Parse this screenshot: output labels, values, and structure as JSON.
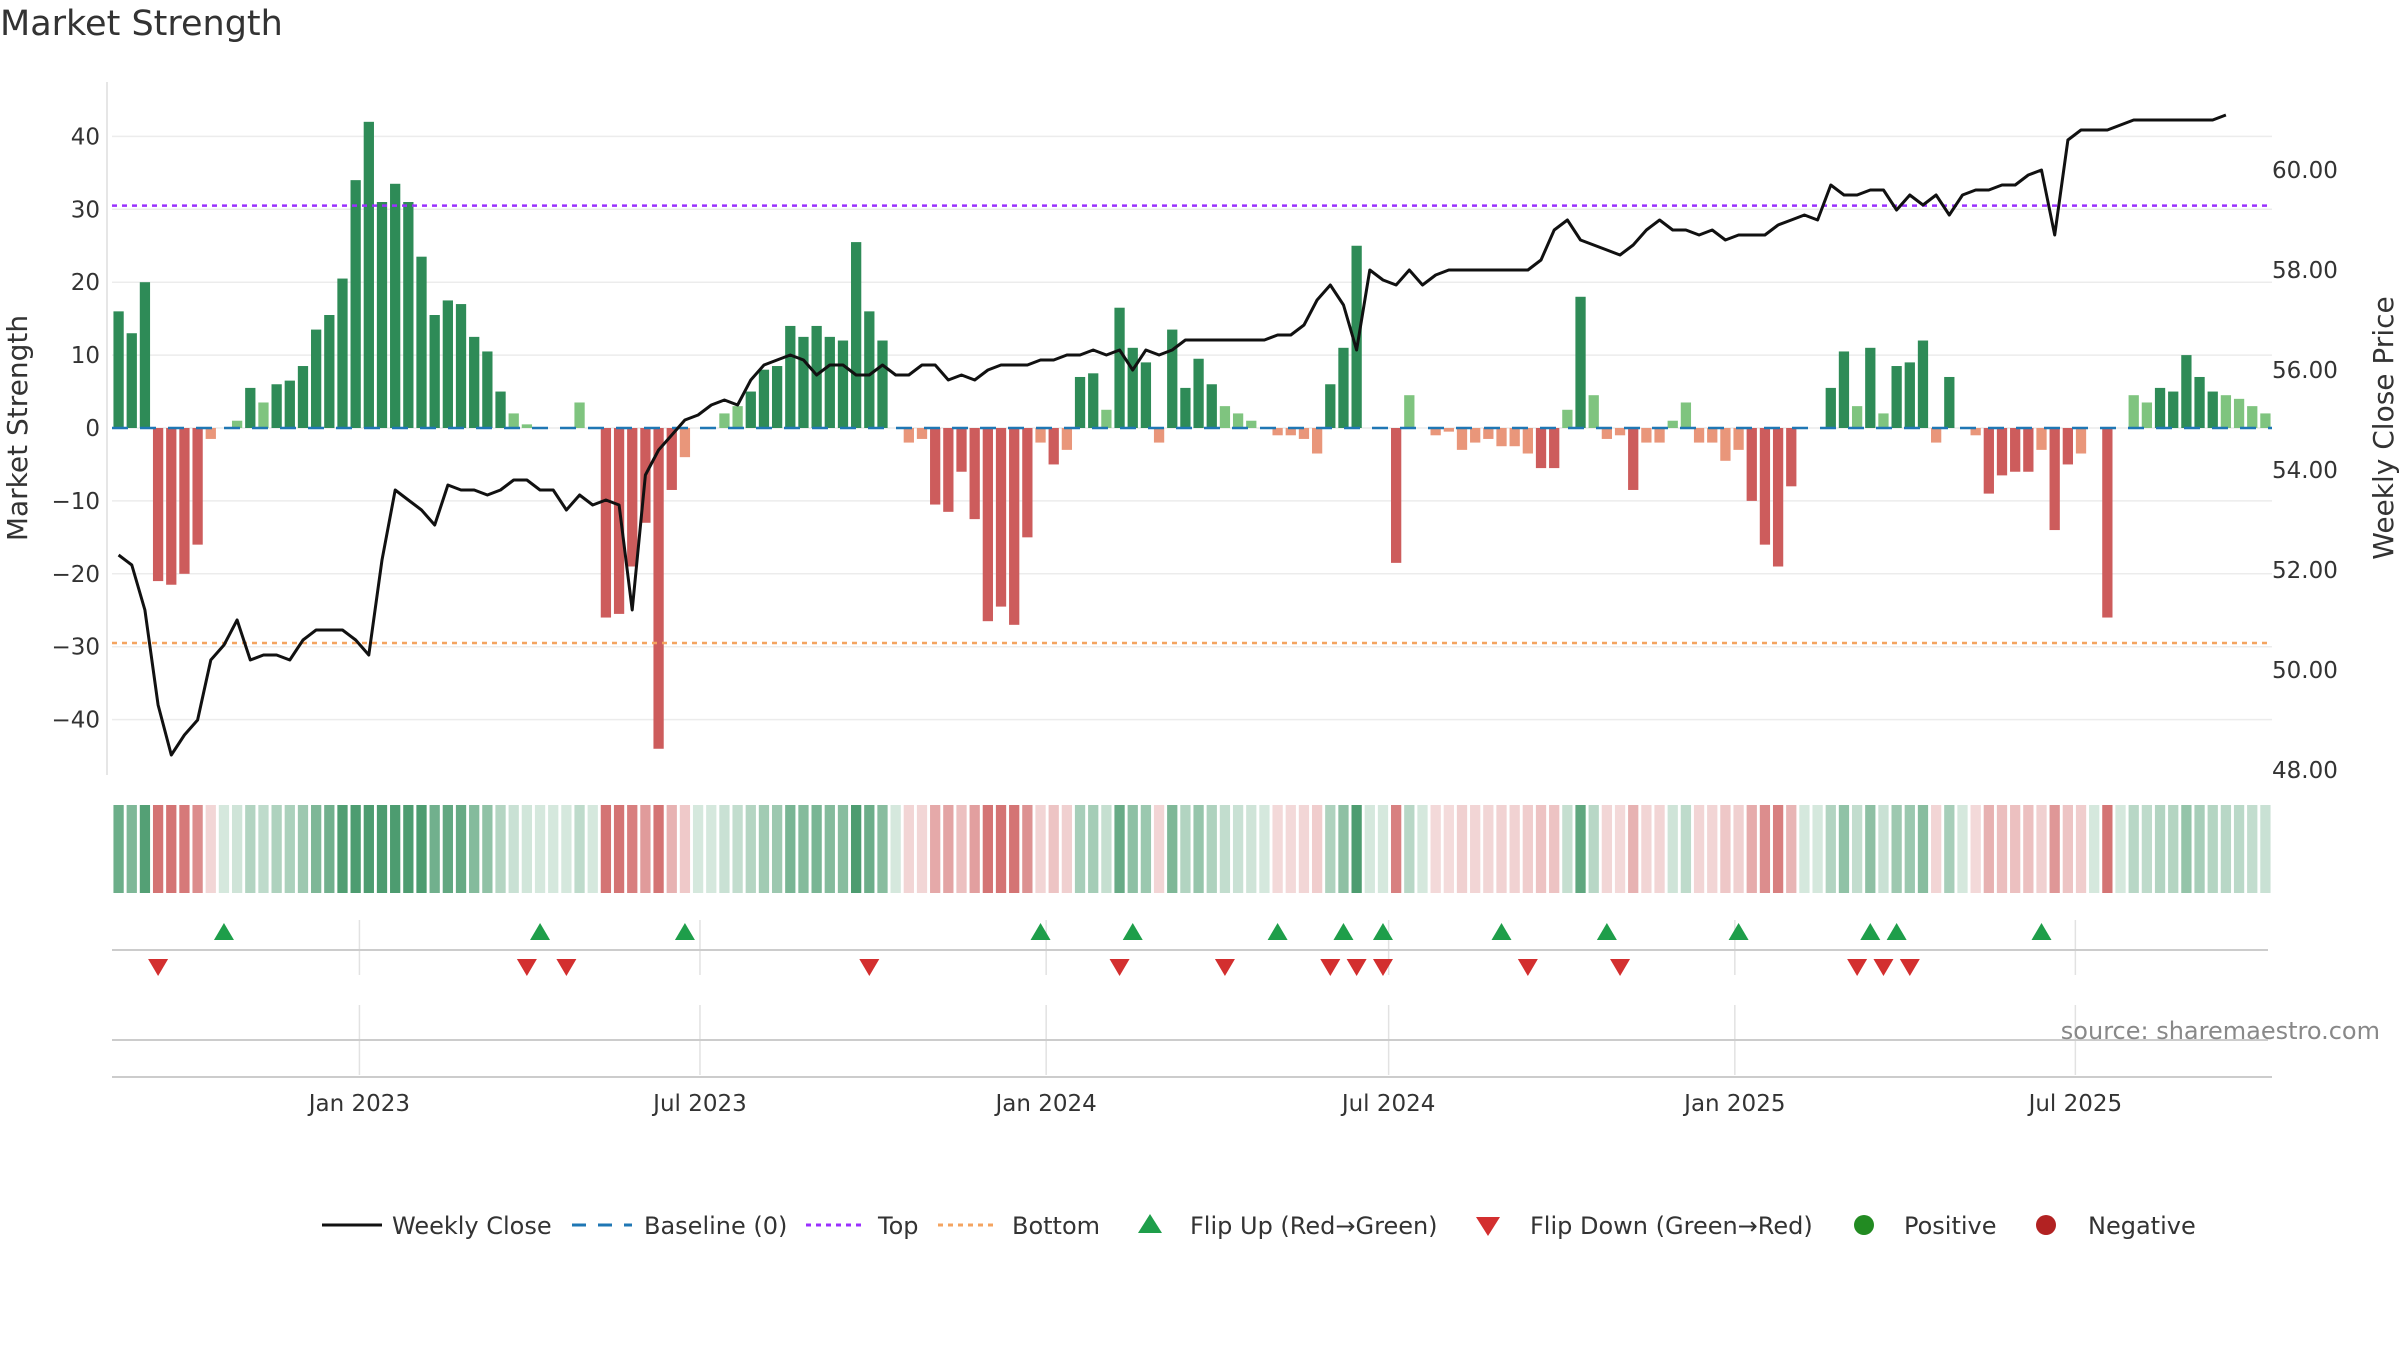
{
  "chart_data": {
    "type": "bar",
    "title": "Market Strength",
    "ylabel": "Market Strength",
    "y2label": "Weekly Close Price",
    "ylim": [
      -47,
      47
    ],
    "y2lim": [
      47.6,
      61.6
    ],
    "yticks": [
      40,
      30,
      20,
      10,
      0,
      -10,
      -20,
      -30,
      -40
    ],
    "y2ticks": [
      "60.00",
      "58.00",
      "56.00",
      "54.00",
      "52.00",
      "50.00",
      "48.00"
    ],
    "x_tick_labels": [
      "Jan 2023",
      "Jul 2023",
      "Jan 2024",
      "Jul 2024",
      "Jan 2025",
      "Jul 2025"
    ],
    "x_start": "2022-08-26",
    "x_step_days": 7,
    "top_line": 30.5,
    "bottom_line": -29.5,
    "strength": [
      16,
      13,
      20,
      -21,
      -21.5,
      -20,
      -16,
      -1.5,
      0,
      1,
      5.5,
      3.5,
      6,
      6.5,
      8.5,
      13.5,
      15.5,
      20.5,
      34,
      42,
      31,
      33.5,
      31,
      23.5,
      15.5,
      17.5,
      17,
      12.5,
      10.5,
      5,
      2,
      0.5,
      0,
      0,
      0,
      3.5,
      0,
      -26,
      -25.5,
      -19,
      -13,
      -44,
      -8.5,
      -4,
      0,
      0,
      2,
      3,
      5,
      8,
      8.5,
      14,
      12.5,
      14,
      12.5,
      12,
      25.5,
      16,
      12,
      0,
      -2,
      -1.5,
      -10.5,
      -11.5,
      -6,
      -12.5,
      -26.5,
      -24.5,
      -27,
      -15,
      -2,
      -5,
      -3,
      7,
      7.5,
      2.5,
      16.5,
      11,
      9,
      -2,
      13.5,
      5.5,
      9.5,
      6,
      3,
      2,
      1,
      0,
      -1,
      -1,
      -1.5,
      -3.5,
      6,
      11,
      25,
      0,
      0,
      -18.5,
      4.5,
      0,
      -1,
      -0.5,
      -3,
      -2,
      -1.5,
      -2.5,
      -2.5,
      -3.5,
      -5.5,
      -5.5,
      2.5,
      18,
      4.5,
      -1.5,
      -1,
      -8.5,
      -2,
      -2,
      1,
      3.5,
      -2,
      -2,
      -4.5,
      -3,
      -10,
      -16,
      -19,
      -8,
      0,
      0,
      5.5,
      10.5,
      3,
      11,
      2,
      8.5,
      9,
      12,
      -2,
      7,
      0,
      -1,
      -9,
      -6.5,
      -6,
      -6,
      -3,
      -14,
      -5,
      -3.5,
      0,
      -26,
      0,
      4.5,
      3.5,
      5.5,
      5,
      10,
      7,
      5,
      4.5,
      4,
      3,
      2
    ],
    "weekly_close": [
      52.3,
      52.1,
      51.2,
      49.3,
      48.3,
      48.7,
      49.0,
      50.2,
      50.5,
      51.0,
      50.2,
      50.3,
      50.3,
      50.2,
      50.6,
      50.8,
      50.8,
      50.8,
      50.6,
      50.3,
      52.2,
      53.6,
      53.4,
      53.2,
      52.9,
      53.7,
      53.6,
      53.6,
      53.5,
      53.6,
      53.8,
      53.8,
      53.6,
      53.6,
      53.2,
      53.5,
      53.3,
      53.4,
      53.3,
      51.2,
      53.9,
      54.4,
      54.7,
      55.0,
      55.1,
      55.3,
      55.4,
      55.3,
      55.8,
      56.1,
      56.2,
      56.3,
      56.2,
      55.9,
      56.1,
      56.1,
      55.9,
      55.9,
      56.1,
      55.9,
      55.9,
      56.1,
      56.1,
      55.8,
      55.9,
      55.8,
      56.0,
      56.1,
      56.1,
      56.1,
      56.2,
      56.2,
      56.3,
      56.3,
      56.4,
      56.3,
      56.4,
      56.0,
      56.4,
      56.3,
      56.4,
      56.6,
      56.6,
      56.6,
      56.6,
      56.6,
      56.6,
      56.6,
      56.7,
      56.7,
      56.9,
      57.4,
      57.7,
      57.3,
      56.4,
      58.0,
      57.8,
      57.7,
      58.0,
      57.7,
      57.9,
      58.0,
      58.0,
      58.0,
      58.0,
      58.0,
      58.0,
      58.0,
      58.2,
      58.8,
      59.0,
      58.6,
      58.5,
      58.4,
      58.3,
      58.5,
      58.8,
      59.0,
      58.8,
      58.8,
      58.7,
      58.8,
      58.6,
      58.7,
      58.7,
      58.7,
      58.9,
      59.0,
      59.1,
      59.0,
      59.7,
      59.5,
      59.5,
      59.6,
      59.6,
      59.2,
      59.5,
      59.3,
      59.5,
      59.1,
      59.5,
      59.6,
      59.6,
      59.7,
      59.7,
      59.9,
      60.0,
      58.7,
      60.6,
      60.8,
      60.8,
      60.8,
      60.9,
      61.0,
      61.0,
      61.0,
      61.0,
      61.0,
      61.0,
      61.0,
      61.1
    ],
    "flip_up_indices": [
      8,
      32,
      43,
      70,
      77,
      88,
      93,
      96,
      105,
      113,
      123,
      133,
      135,
      146
    ],
    "flip_down_indices": [
      3,
      31,
      34,
      57,
      76,
      84,
      92,
      94,
      96,
      107,
      114,
      132,
      134,
      136
    ],
    "legend": [
      "Weekly Close",
      "Baseline (0)",
      "Top",
      "Bottom",
      "Flip Up (Red→Green)",
      "Flip Down (Green→Red)",
      "Positive",
      "Negative"
    ],
    "annotation": "source: sharemaestro.com"
  },
  "colors": {
    "pos_dark": "#2e8b57",
    "pos_light": "#7fc47f",
    "neg_dark": "#cd5c5c",
    "neg_light": "#e9967a",
    "line": "#111111",
    "baseline": "#1f77b4",
    "top": "#9b30ff",
    "bottom": "#f4a460",
    "flip_up": "#1e9e4a",
    "flip_down": "#d32f2f",
    "positive_dot": "#228b22",
    "negative_dot": "#b22222"
  }
}
